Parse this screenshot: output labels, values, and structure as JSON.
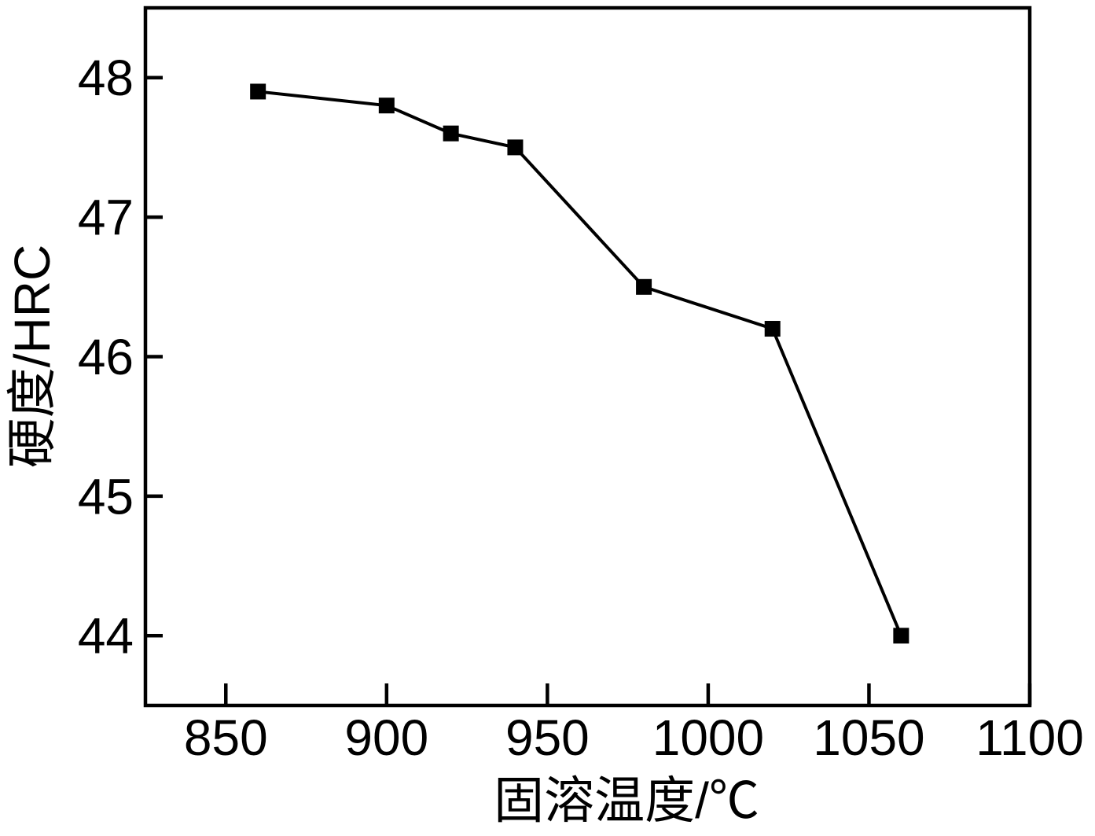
{
  "figure": {
    "background_color": "#ffffff",
    "foreground_color": "#000000"
  },
  "chart_data": {
    "type": "line",
    "title": "",
    "xlabel": "固溶温度/℃",
    "ylabel": "硬度/HRC",
    "x": [
      860,
      900,
      920,
      940,
      980,
      1020,
      1060
    ],
    "y": [
      47.9,
      47.8,
      47.6,
      47.5,
      46.5,
      46.2,
      44.0
    ],
    "series": [
      {
        "name": "硬度/HRC",
        "values": [
          47.9,
          47.8,
          47.6,
          47.5,
          46.5,
          46.2,
          44.0
        ]
      }
    ],
    "xlim": [
      825,
      1100
    ],
    "ylim": [
      43.5,
      48.5
    ],
    "xticks": [
      850,
      900,
      950,
      1000,
      1050,
      1100
    ],
    "yticks": [
      44,
      45,
      46,
      47,
      48
    ],
    "grid": false,
    "legend_position": "none",
    "marker": "filled-square",
    "marker_size_px": 20,
    "marker_color": "#000000",
    "line_color": "#000000"
  }
}
